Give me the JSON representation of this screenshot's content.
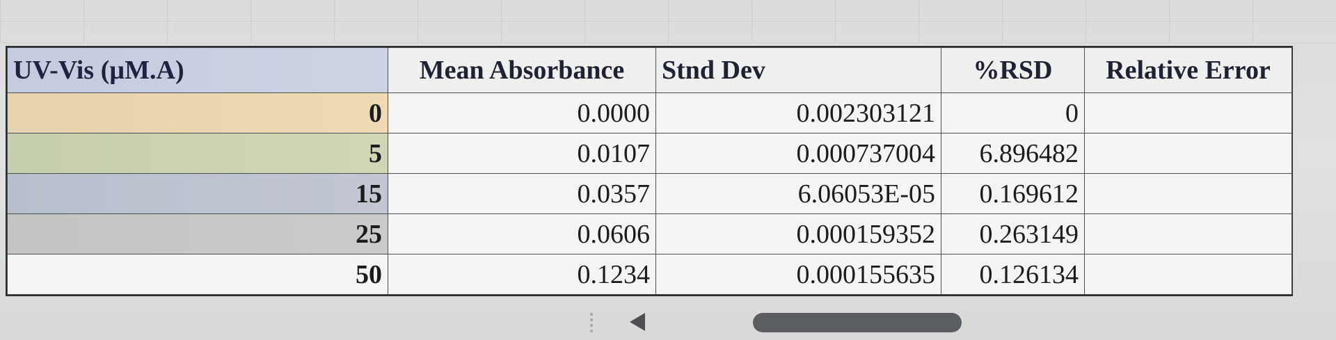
{
  "table": {
    "headers": [
      "UV-Vis (µM.A)",
      "Mean Absorbance",
      "Stnd Dev",
      "%RSD",
      "Relative Error"
    ],
    "rows": [
      {
        "conc": "0",
        "mean": "0.0000",
        "sd": "0.002303121",
        "rsd": "0",
        "err": ""
      },
      {
        "conc": "5",
        "mean": "0.0107",
        "sd": "0.000737004",
        "rsd": "6.896482",
        "err": ""
      },
      {
        "conc": "15",
        "mean": "0.0357",
        "sd": "6.06053E-05",
        "rsd": "0.169612",
        "err": ""
      },
      {
        "conc": "25",
        "mean": "0.0606",
        "sd": "0.000159352",
        "rsd": "0.263149",
        "err": ""
      },
      {
        "conc": "50",
        "mean": "0.1234",
        "sd": "0.000155635",
        "rsd": "0.126134",
        "err": ""
      }
    ]
  },
  "icons": {
    "scroll_left": "scroll-left-arrow-icon",
    "sheet_dots": "sheet-tab-dots-icon"
  },
  "colors": {
    "header_label_fill": "#c8cde2",
    "row0_fill": "#ecd6b1",
    "row1_fill": "#cad2b1",
    "row2_fill": "#bcc2ce",
    "row3_fill": "#c7c7c5"
  }
}
